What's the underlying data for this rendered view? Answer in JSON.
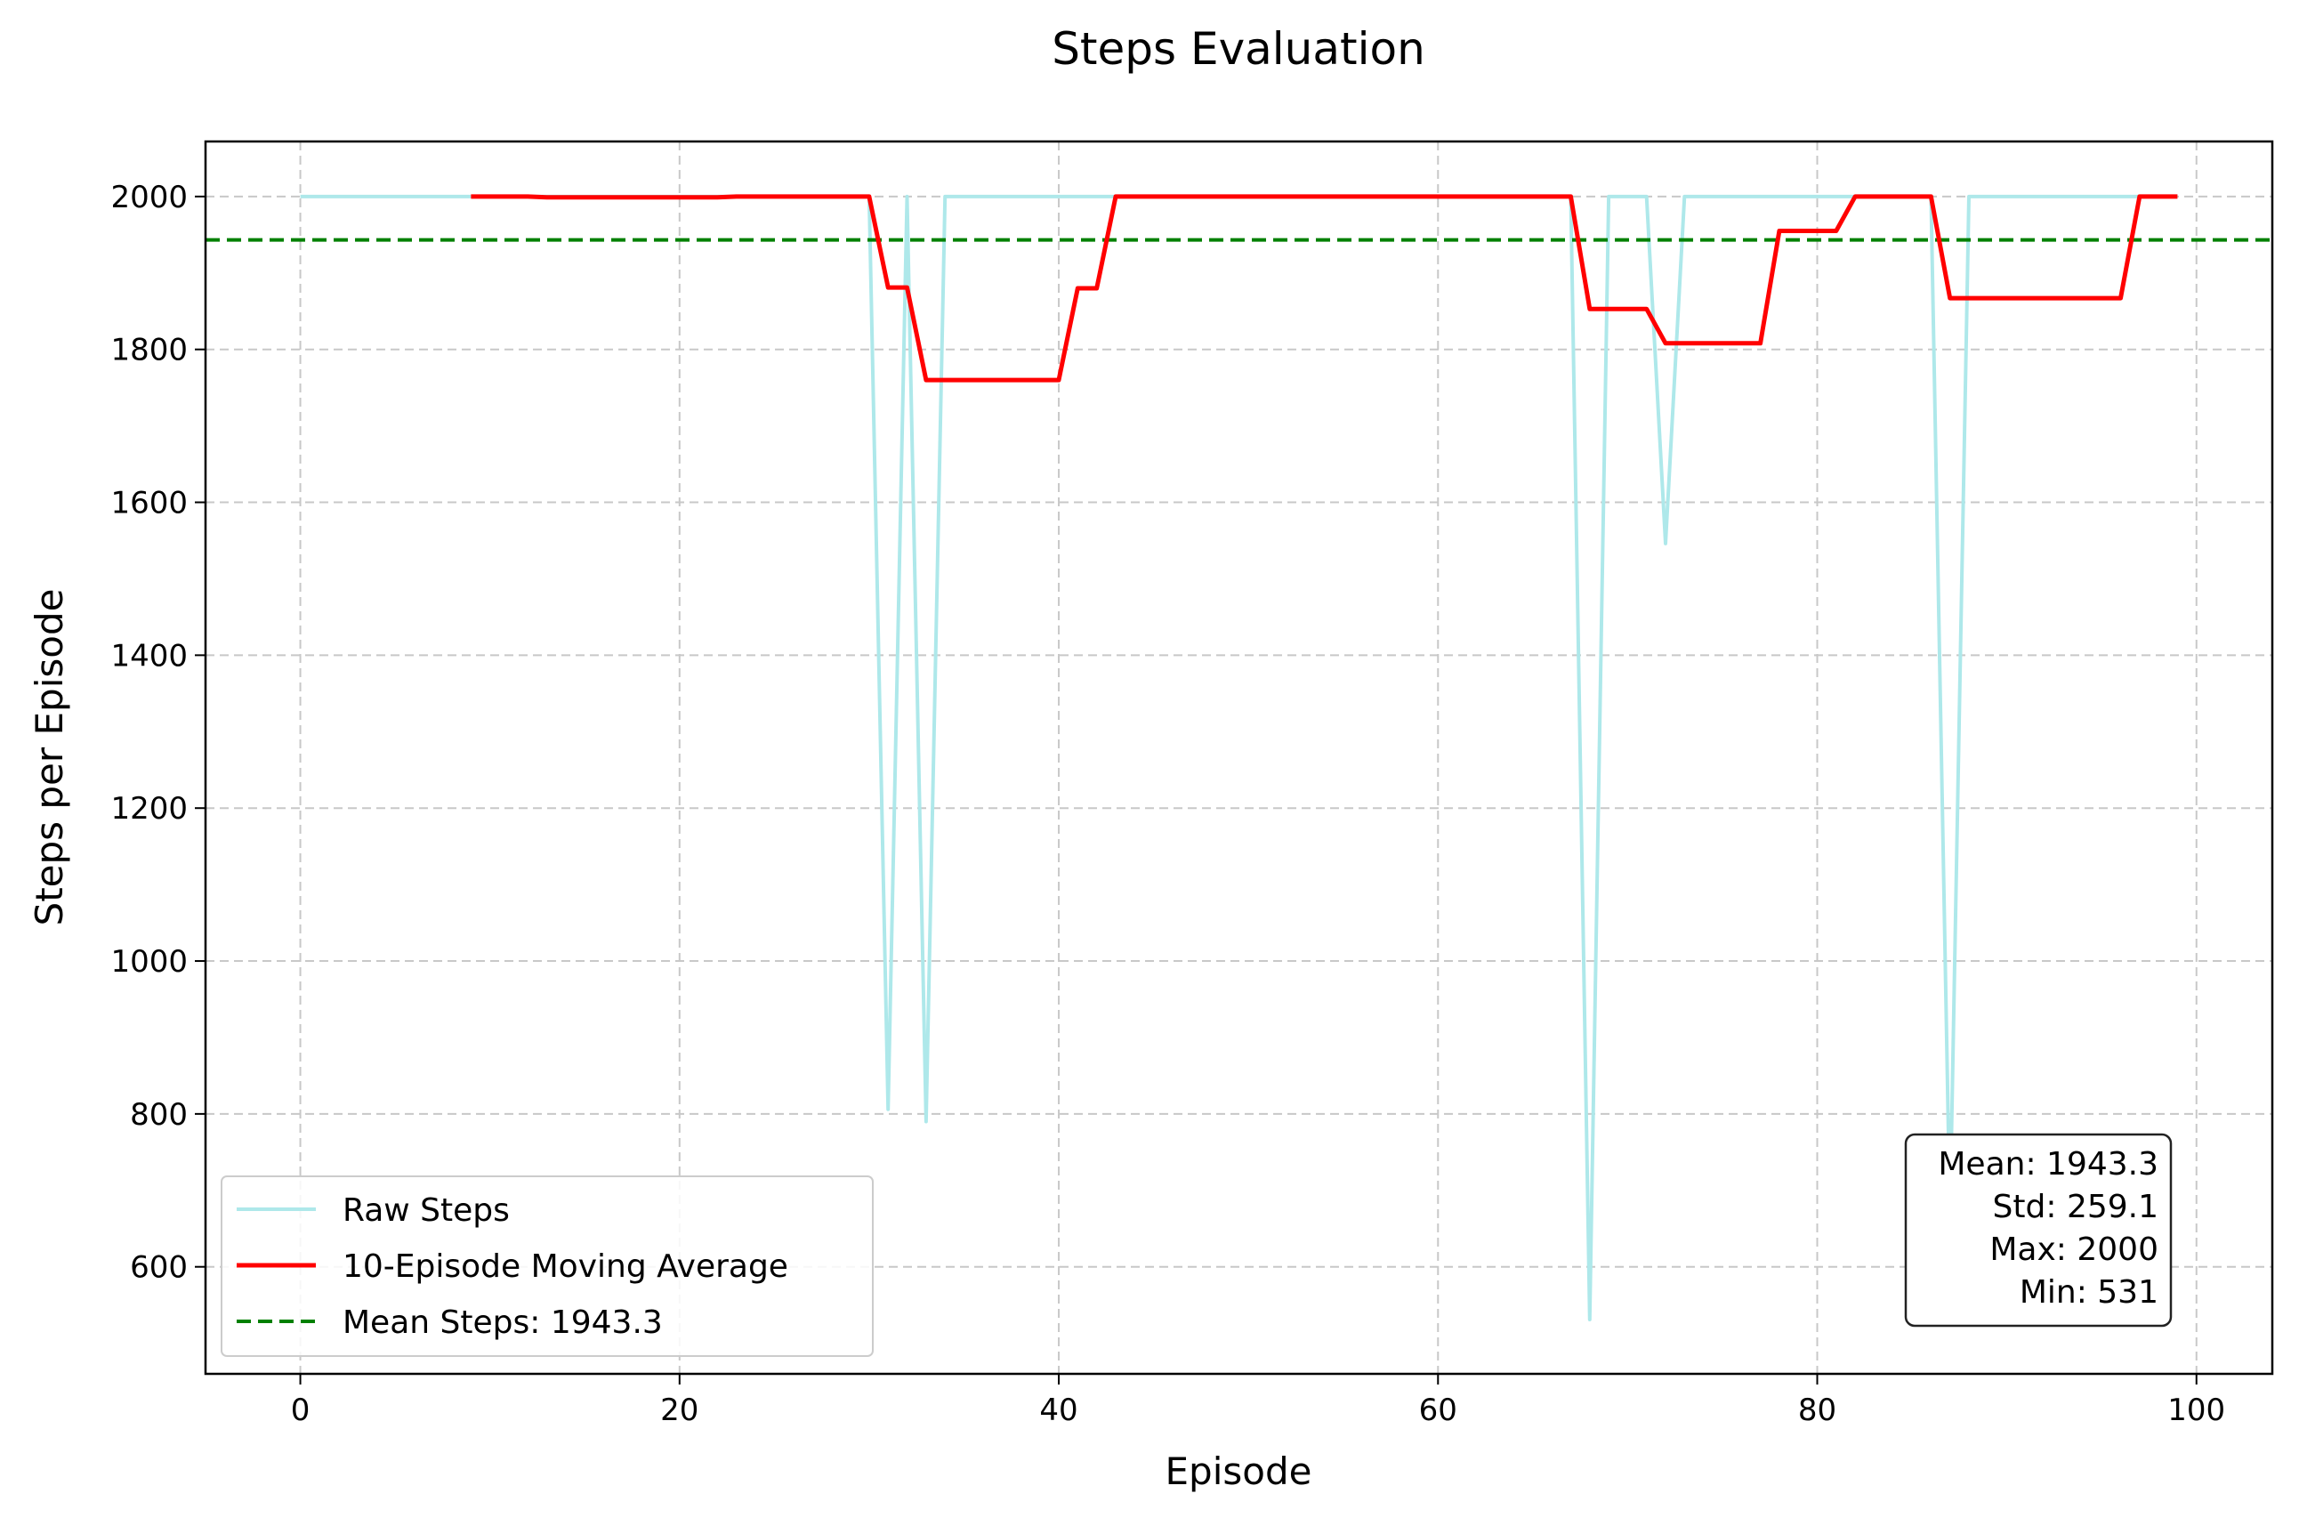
{
  "chart_data": {
    "type": "line",
    "title": "Steps Evaluation",
    "xlabel": "Episode",
    "ylabel": "Steps per Episode",
    "xlim": [
      -5,
      104
    ],
    "ylim": [
      460,
      2072
    ],
    "xticks": [
      0,
      20,
      40,
      60,
      80,
      100
    ],
    "yticks": [
      600,
      800,
      1000,
      1200,
      1400,
      1600,
      1800,
      2000
    ],
    "grid": true,
    "legend_position": "lower-left",
    "colors": {
      "raw": "#aee8ea",
      "moving_average": "#ff0000",
      "mean": "#008000",
      "grid": "#c8c8c8"
    },
    "series": [
      {
        "name": "Raw Steps",
        "style": "solid",
        "x": [
          0,
          1,
          2,
          3,
          4,
          5,
          6,
          7,
          8,
          9,
          10,
          11,
          12,
          13,
          14,
          15,
          16,
          17,
          18,
          19,
          20,
          21,
          22,
          23,
          24,
          25,
          26,
          27,
          28,
          29,
          30,
          31,
          32,
          33,
          34,
          35,
          36,
          37,
          38,
          39,
          40,
          41,
          42,
          43,
          44,
          45,
          46,
          47,
          48,
          49,
          50,
          51,
          52,
          53,
          54,
          55,
          56,
          57,
          58,
          59,
          60,
          61,
          62,
          63,
          64,
          65,
          66,
          67,
          68,
          69,
          70,
          71,
          72,
          73,
          74,
          75,
          76,
          77,
          78,
          79,
          80,
          81,
          82,
          83,
          84,
          85,
          86,
          87,
          88,
          89,
          90,
          91,
          92,
          93,
          94,
          95,
          96,
          97,
          98,
          99
        ],
        "values": [
          2000,
          2000,
          2000,
          2000,
          2000,
          2000,
          2000,
          2000,
          2000,
          2000,
          2000,
          2000,
          2000,
          2000,
          2000,
          2000,
          2000,
          2000,
          2000,
          2000,
          2000,
          2000,
          2000,
          2000,
          2000,
          2000,
          2000,
          2000,
          2000,
          2000,
          2000,
          806,
          2000,
          790,
          2000,
          2000,
          2000,
          2000,
          2000,
          2000,
          2000,
          2000,
          2000,
          2000,
          2000,
          2000,
          2000,
          2000,
          2000,
          2000,
          2000,
          2000,
          2000,
          2000,
          2000,
          2000,
          2000,
          2000,
          2000,
          2000,
          2000,
          2000,
          2000,
          2000,
          2000,
          2000,
          2000,
          2000,
          531,
          2000,
          2000,
          2000,
          1546,
          2000,
          2000,
          2000,
          2000,
          2000,
          2000,
          2000,
          2000,
          2000,
          2000,
          2000,
          2000,
          2000,
          2000,
          665,
          2000,
          2000,
          2000,
          2000,
          2000,
          2000,
          2000,
          2000,
          2000,
          2000,
          2000,
          2000
        ]
      },
      {
        "name": "10-Episode Moving Average",
        "style": "solid",
        "x": [
          9,
          10,
          11,
          12,
          13,
          14,
          15,
          16,
          17,
          18,
          19,
          20,
          21,
          22,
          23,
          24,
          25,
          26,
          27,
          28,
          29,
          30,
          31,
          32,
          33,
          34,
          35,
          36,
          37,
          38,
          39,
          40,
          41,
          42,
          43,
          44,
          45,
          46,
          47,
          48,
          49,
          50,
          51,
          52,
          53,
          54,
          55,
          56,
          57,
          58,
          59,
          60,
          61,
          62,
          63,
          64,
          65,
          66,
          67,
          68,
          69,
          70,
          71,
          72,
          73,
          74,
          75,
          76,
          77,
          78,
          79,
          80,
          81,
          82,
          83,
          84,
          85,
          86,
          87,
          88,
          89,
          90,
          91,
          92,
          93,
          94,
          95,
          96,
          97,
          98,
          99
        ],
        "values": [
          2000,
          2000,
          2000,
          2000,
          1999,
          1999,
          1999,
          1999,
          1999,
          1999,
          1999,
          1999,
          1999,
          1999,
          2000,
          2000,
          2000,
          2000,
          2000,
          2000,
          2000,
          2000,
          1881,
          1881,
          1760,
          1760,
          1760,
          1760,
          1760,
          1760,
          1760,
          1760,
          1880,
          1880,
          2000,
          2000,
          2000,
          2000,
          2000,
          2000,
          2000,
          2000,
          2000,
          2000,
          2000,
          2000,
          2000,
          2000,
          2000,
          2000,
          2000,
          2000,
          2000,
          2000,
          2000,
          2000,
          2000,
          2000,
          2000,
          1853,
          1853,
          1853,
          1853,
          1808,
          1808,
          1808,
          1808,
          1808,
          1808,
          1955,
          1955,
          1955,
          1955,
          2000,
          2000,
          2000,
          2000,
          2000,
          1867,
          1867,
          1867,
          1867,
          1867,
          1867,
          1867,
          1867,
          1867,
          1867,
          2000,
          2000,
          2000
        ]
      },
      {
        "name": "Mean Steps: 1943.3",
        "style": "dashed",
        "value": 1943.3
      }
    ],
    "stats": [
      "Mean: 1943.3",
      "Std: 259.1",
      "Max: 2000",
      "Min: 531"
    ]
  }
}
